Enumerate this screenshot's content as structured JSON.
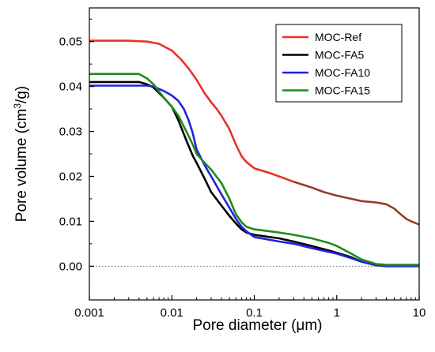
{
  "chart_data": {
    "type": "line",
    "title": "",
    "xlabel": "Pore diameter (μm)",
    "ylabel_main": "Pore volume (cm",
    "ylabel_sup": "3",
    "ylabel_tail": "/g)",
    "x_scale": "log",
    "xlim": [
      0.001,
      10
    ],
    "ylim": [
      -0.0075,
      0.0575
    ],
    "x_ticks": [
      0.001,
      0.01,
      0.1,
      1,
      10
    ],
    "x_tick_labels": [
      "0.001",
      "0.01",
      "0.1",
      "1",
      "10"
    ],
    "y_ticks": [
      0.0,
      0.01,
      0.02,
      0.03,
      0.04,
      0.05
    ],
    "y_tick_labels": [
      "0.00",
      "0.01",
      "0.02",
      "0.03",
      "0.04",
      "0.05"
    ],
    "zero_line": true,
    "grid": false,
    "legend_position": "top-right",
    "series": [
      {
        "name": "MOC-Ref",
        "color": "#e8322a",
        "tail_color": "#9a3a2a",
        "points": [
          [
            0.001,
            0.0502
          ],
          [
            0.003,
            0.0502
          ],
          [
            0.005,
            0.05
          ],
          [
            0.007,
            0.0495
          ],
          [
            0.01,
            0.048
          ],
          [
            0.013,
            0.046
          ],
          [
            0.016,
            0.044
          ],
          [
            0.02,
            0.0415
          ],
          [
            0.025,
            0.0385
          ],
          [
            0.03,
            0.0365
          ],
          [
            0.035,
            0.035
          ],
          [
            0.04,
            0.0335
          ],
          [
            0.05,
            0.0305
          ],
          [
            0.06,
            0.027
          ],
          [
            0.07,
            0.0245
          ],
          [
            0.08,
            0.0232
          ],
          [
            0.1,
            0.0218
          ],
          [
            0.15,
            0.0208
          ],
          [
            0.2,
            0.02
          ],
          [
            0.3,
            0.0188
          ],
          [
            0.5,
            0.0175
          ],
          [
            0.7,
            0.0165
          ],
          [
            1.0,
            0.0157
          ],
          [
            1.5,
            0.015
          ],
          [
            2.0,
            0.0145
          ],
          [
            3.0,
            0.0142
          ],
          [
            4.0,
            0.0138
          ],
          [
            5.0,
            0.0128
          ],
          [
            6.0,
            0.0115
          ],
          [
            7.0,
            0.0105
          ],
          [
            8.0,
            0.01
          ],
          [
            10.0,
            0.0093
          ]
        ]
      },
      {
        "name": "MOC-FA5",
        "color": "#000000",
        "points": [
          [
            0.001,
            0.041
          ],
          [
            0.004,
            0.041
          ],
          [
            0.005,
            0.0405
          ],
          [
            0.006,
            0.0398
          ],
          [
            0.008,
            0.0375
          ],
          [
            0.01,
            0.0355
          ],
          [
            0.012,
            0.0325
          ],
          [
            0.015,
            0.028
          ],
          [
            0.018,
            0.0245
          ],
          [
            0.02,
            0.023
          ],
          [
            0.025,
            0.0195
          ],
          [
            0.03,
            0.0165
          ],
          [
            0.04,
            0.0135
          ],
          [
            0.05,
            0.0112
          ],
          [
            0.06,
            0.0095
          ],
          [
            0.07,
            0.0082
          ],
          [
            0.08,
            0.0075
          ],
          [
            0.1,
            0.007
          ],
          [
            0.2,
            0.0062
          ],
          [
            0.3,
            0.0055
          ],
          [
            0.5,
            0.0045
          ],
          [
            0.8,
            0.0035
          ],
          [
            1.0,
            0.003
          ],
          [
            1.5,
            0.002
          ],
          [
            2.0,
            0.001
          ],
          [
            3.0,
            0.0003
          ],
          [
            4.0,
            0.0001
          ],
          [
            10.0,
            0.0001
          ]
        ]
      },
      {
        "name": "MOC-FA10",
        "color": "#2222dd",
        "points": [
          [
            0.001,
            0.0402
          ],
          [
            0.005,
            0.0402
          ],
          [
            0.006,
            0.04
          ],
          [
            0.008,
            0.039
          ],
          [
            0.01,
            0.038
          ],
          [
            0.012,
            0.0368
          ],
          [
            0.014,
            0.035
          ],
          [
            0.016,
            0.0325
          ],
          [
            0.018,
            0.0295
          ],
          [
            0.02,
            0.026
          ],
          [
            0.025,
            0.0225
          ],
          [
            0.03,
            0.02
          ],
          [
            0.04,
            0.016
          ],
          [
            0.05,
            0.013
          ],
          [
            0.06,
            0.0105
          ],
          [
            0.07,
            0.0088
          ],
          [
            0.08,
            0.0078
          ],
          [
            0.1,
            0.0065
          ],
          [
            0.2,
            0.0055
          ],
          [
            0.3,
            0.005
          ],
          [
            0.5,
            0.004
          ],
          [
            0.8,
            0.0032
          ],
          [
            1.0,
            0.0028
          ],
          [
            1.5,
            0.0018
          ],
          [
            2.0,
            0.001
          ],
          [
            3.0,
            0.0002
          ],
          [
            4.0,
            0.0
          ],
          [
            10.0,
            0.0
          ]
        ]
      },
      {
        "name": "MOC-FA15",
        "color": "#1f8a1f",
        "points": [
          [
            0.001,
            0.0428
          ],
          [
            0.004,
            0.0428
          ],
          [
            0.005,
            0.0418
          ],
          [
            0.006,
            0.0405
          ],
          [
            0.008,
            0.0375
          ],
          [
            0.01,
            0.0355
          ],
          [
            0.012,
            0.0335
          ],
          [
            0.015,
            0.03
          ],
          [
            0.018,
            0.027
          ],
          [
            0.02,
            0.025
          ],
          [
            0.025,
            0.023
          ],
          [
            0.03,
            0.0215
          ],
          [
            0.04,
            0.0185
          ],
          [
            0.05,
            0.015
          ],
          [
            0.06,
            0.0115
          ],
          [
            0.07,
            0.0098
          ],
          [
            0.08,
            0.0088
          ],
          [
            0.1,
            0.0082
          ],
          [
            0.2,
            0.0075
          ],
          [
            0.3,
            0.007
          ],
          [
            0.5,
            0.0062
          ],
          [
            0.8,
            0.0052
          ],
          [
            1.0,
            0.0045
          ],
          [
            1.5,
            0.0028
          ],
          [
            2.0,
            0.0015
          ],
          [
            3.0,
            0.0005
          ],
          [
            4.0,
            0.0003
          ],
          [
            10.0,
            0.0003
          ]
        ]
      }
    ]
  }
}
